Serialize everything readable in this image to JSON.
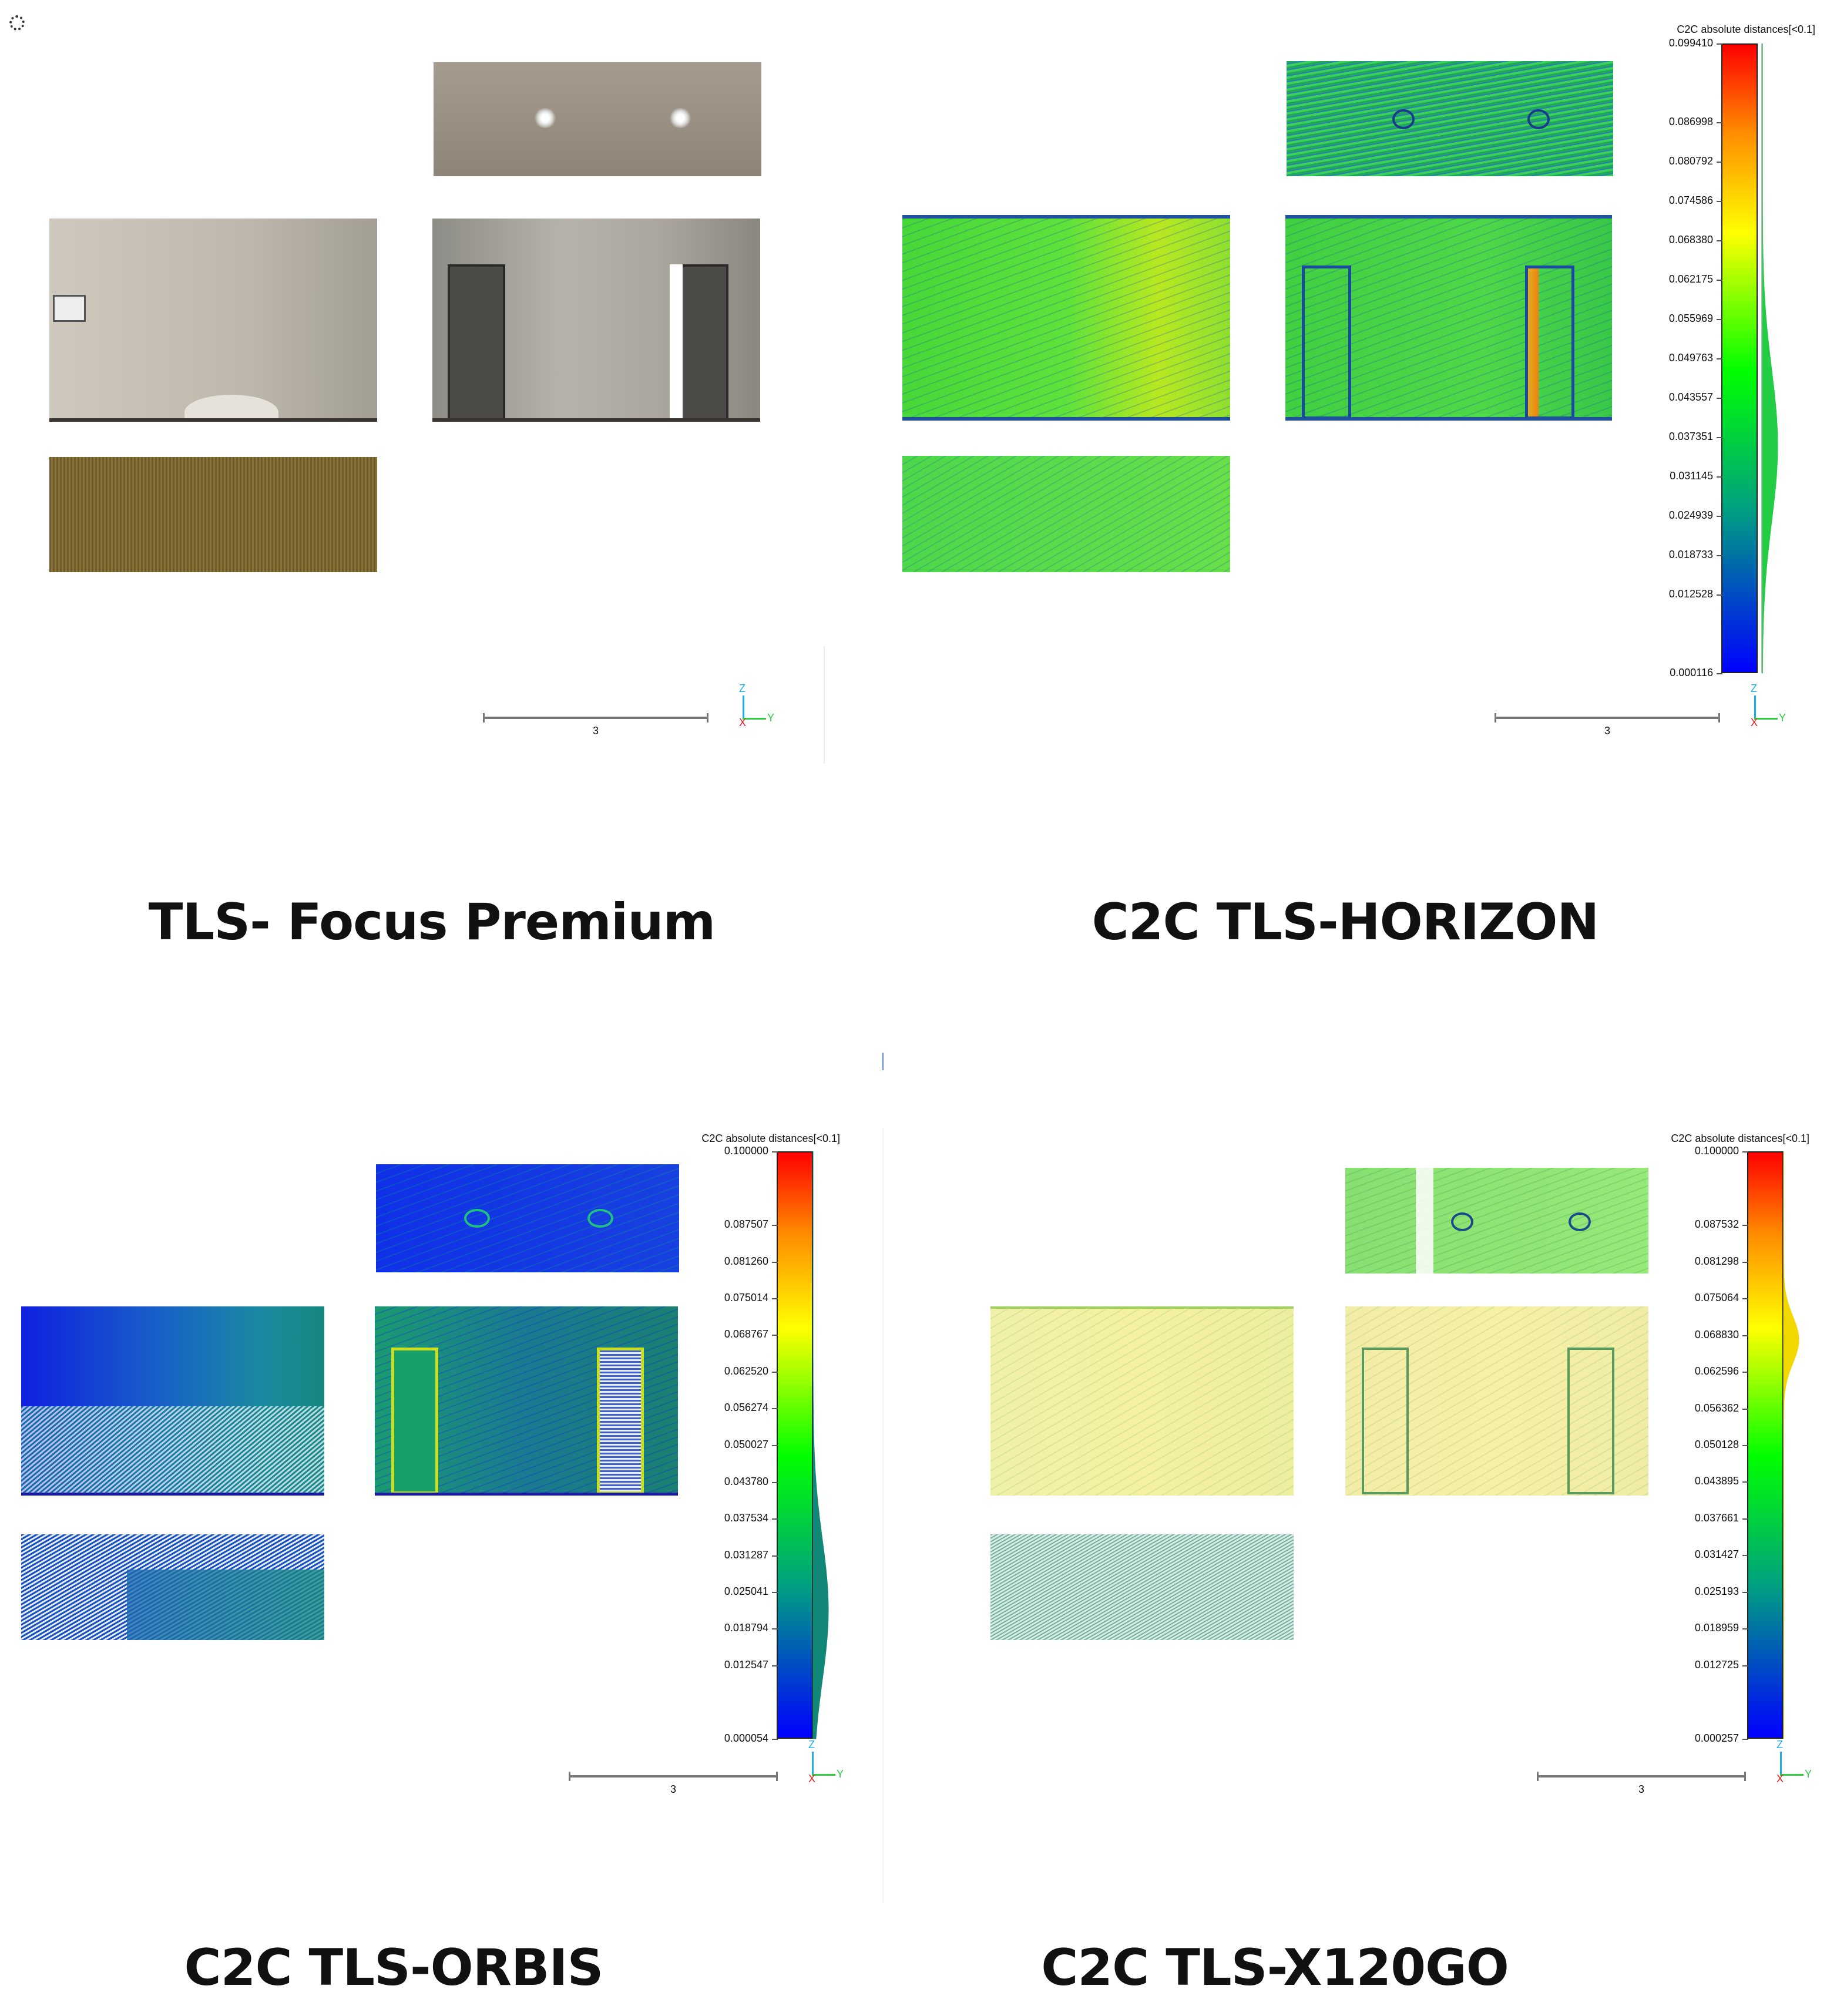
{
  "panels": [
    {
      "caption": "TLS- Focus Premium",
      "scale_label": "3",
      "axes": {
        "z": "Z",
        "x": "X",
        "y": "Y"
      }
    },
    {
      "caption": "C2C TLS-HORIZON",
      "scale_label": "3",
      "axes": {
        "z": "Z",
        "x": "X",
        "y": "Y"
      },
      "colorbar": {
        "title": "C2C absolute distances[<0.1]",
        "min": 0.000116,
        "max": 0.09941,
        "ticks": [
          "0.099410",
          "0.086998",
          "0.080792",
          "0.074586",
          "0.068380",
          "0.062175",
          "0.055969",
          "0.049763",
          "0.043557",
          "0.037351",
          "0.031145",
          "0.024939",
          "0.018733",
          "0.012528",
          "0.000116"
        ],
        "histogram": {
          "peak_value": 0.036,
          "spread": 0.012,
          "color": "#22cc44"
        }
      }
    },
    {
      "caption": "C2C TLS-ORBIS",
      "scale_label": "3",
      "axes": {
        "z": "Z",
        "x": "X",
        "y": "Y"
      },
      "colorbar": {
        "title": "C2C absolute distances[<0.1]",
        "min": 5.4e-05,
        "max": 0.1,
        "ticks": [
          "0.100000",
          "0.087507",
          "0.081260",
          "0.075014",
          "0.068767",
          "0.062520",
          "0.056274",
          "0.050027",
          "0.043780",
          "0.037534",
          "0.031287",
          "0.025041",
          "0.018794",
          "0.012547",
          "0.000054"
        ],
        "histogram": {
          "peak_value": 0.022,
          "spread": 0.012,
          "color": "#118877"
        }
      }
    },
    {
      "caption": "C2C TLS-X120GO",
      "scale_label": "3",
      "axes": {
        "z": "Z",
        "x": "X",
        "y": "Y"
      },
      "colorbar": {
        "title": "C2C absolute distances[<0.1]",
        "min": 0.000257,
        "max": 0.1,
        "ticks": [
          "0.100000",
          "0.087532",
          "0.081298",
          "0.075064",
          "0.068830",
          "0.062596",
          "0.056362",
          "0.050128",
          "0.043895",
          "0.037661",
          "0.031427",
          "0.025193",
          "0.018959",
          "0.012725",
          "0.000257"
        ],
        "histogram": {
          "peak_value": 0.068,
          "spread": 0.004,
          "color": "#f0d800"
        }
      }
    }
  ]
}
